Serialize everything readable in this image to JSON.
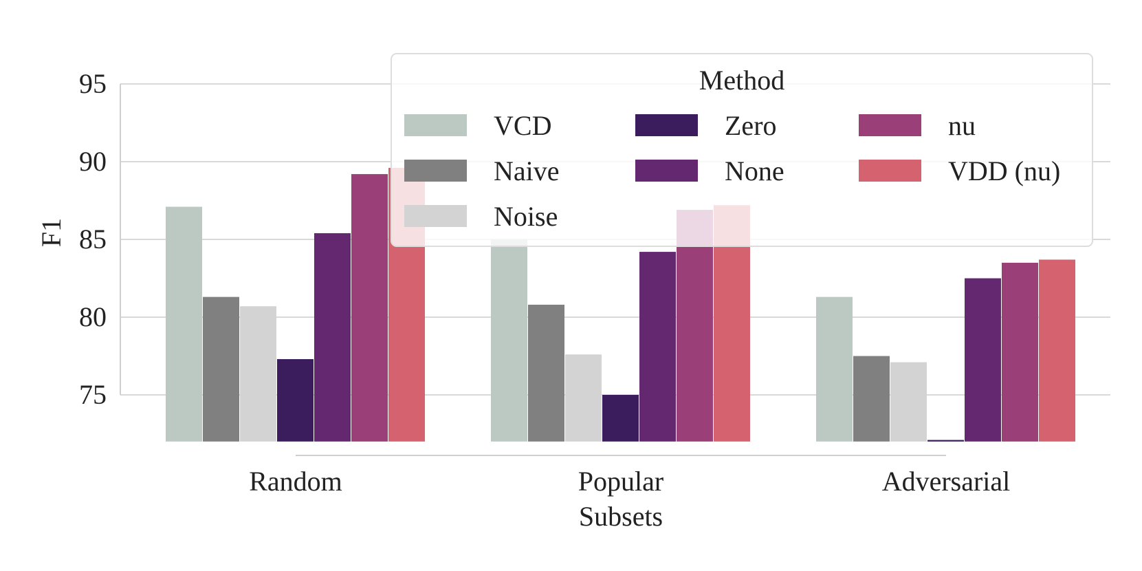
{
  "chart_data": {
    "type": "bar",
    "title": "",
    "xlabel": "Subsets",
    "ylabel": "F1",
    "categories": [
      "Random",
      "Popular",
      "Adversarial"
    ],
    "ylim": [
      72,
      98
    ],
    "yticks": [
      75,
      80,
      85,
      90,
      95
    ],
    "grid": true,
    "legend": {
      "title": "Method",
      "placement": "top-right",
      "columns": 3
    },
    "series": [
      {
        "name": "VCD",
        "color": "#bbc9c2",
        "values": [
          87.1,
          85.0,
          81.3
        ]
      },
      {
        "name": "Naive",
        "color": "#808080",
        "values": [
          81.3,
          80.8,
          77.5
        ]
      },
      {
        "name": "Noise",
        "color": "#d3d3d3",
        "values": [
          80.7,
          77.6,
          77.1
        ]
      },
      {
        "name": "Zero",
        "color": "#3b1d5e",
        "values": [
          77.3,
          75.0,
          72.1
        ]
      },
      {
        "name": "None",
        "color": "#642871",
        "values": [
          85.4,
          84.2,
          82.5
        ]
      },
      {
        "name": "nu",
        "color": "#9a3f78",
        "values": [
          89.2,
          86.9,
          83.5
        ]
      },
      {
        "name": "VDD (nu)",
        "color": "#d4636f",
        "values": [
          89.6,
          87.2,
          83.7
        ]
      }
    ]
  }
}
